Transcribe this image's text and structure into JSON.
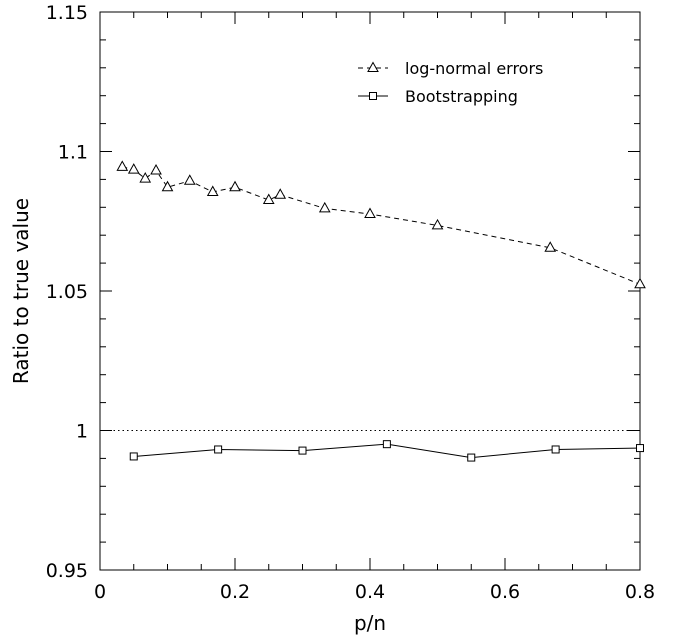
{
  "chart_data": {
    "type": "line",
    "xlabel": "p/n",
    "ylabel": "Ratio to true value",
    "xlim": [
      0,
      0.8
    ],
    "ylim": [
      0.95,
      1.15
    ],
    "x_ticks": [
      0,
      0.2,
      0.4,
      0.6,
      0.8
    ],
    "x_tick_labels": [
      "0",
      "0.2",
      "0.4",
      "0.6",
      "0.8"
    ],
    "y_ticks": [
      0.95,
      1.0,
      1.05,
      1.1,
      1.15
    ],
    "y_tick_labels": [
      "0.95",
      "1",
      "1.05",
      "1.1",
      "1.15"
    ],
    "x_minor_step": 0.05,
    "y_minor_step": 0.01,
    "grid": false,
    "legend_position": "top-right",
    "reference_line": {
      "y": 1.0,
      "style": "dotted"
    },
    "series": [
      {
        "name": "log-normal errors",
        "marker": "triangle",
        "line_style": "dashed",
        "x": [
          0.033,
          0.05,
          0.067,
          0.083,
          0.1,
          0.133,
          0.167,
          0.2,
          0.25,
          0.267,
          0.333,
          0.4,
          0.5,
          0.667,
          0.8
        ],
        "y": [
          1.0945,
          1.0935,
          1.0903,
          1.0932,
          1.0872,
          1.0895,
          1.0855,
          1.0872,
          1.0826,
          1.0845,
          1.0796,
          1.0776,
          1.0735,
          1.0655,
          1.0524
        ]
      },
      {
        "name": "Bootstrapping",
        "marker": "square",
        "line_style": "solid",
        "x": [
          0.05,
          0.175,
          0.3,
          0.425,
          0.55,
          0.675,
          0.8
        ],
        "y": [
          0.9907,
          0.9932,
          0.9928,
          0.9951,
          0.9903,
          0.9932,
          0.9937
        ]
      }
    ]
  }
}
